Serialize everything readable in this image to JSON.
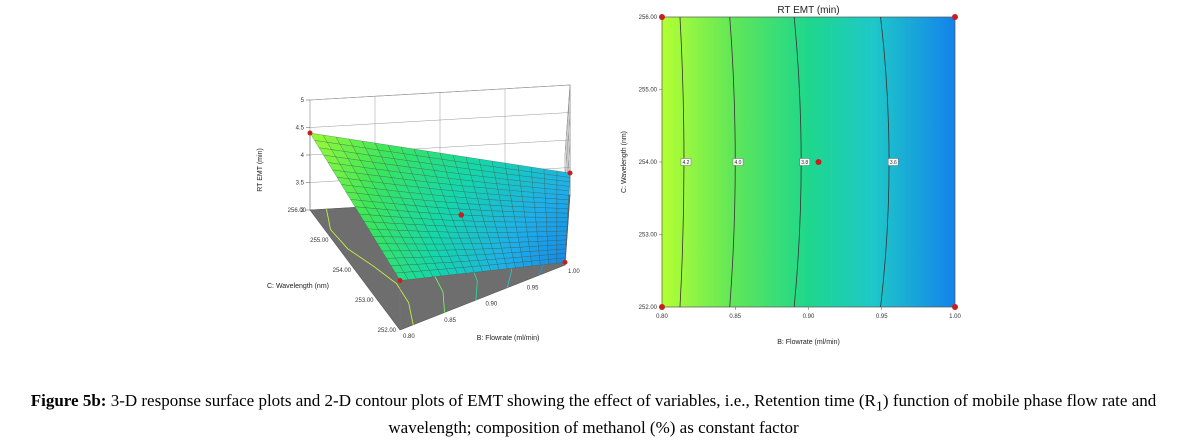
{
  "chart_data": [
    {
      "type": "surface",
      "zlabel": "RT EMT (min)",
      "xlabel": "B: Flowrate (ml/min)",
      "ylabel": "C: Wavelength (nm)",
      "z_ticks": [
        "3",
        "3.5",
        "4",
        "4.5",
        "5"
      ],
      "x_ticks": [
        "0.80",
        "0.85",
        "0.90",
        "0.95",
        "1.00"
      ],
      "y_ticks": [
        "252.00",
        "253.00",
        "254.00",
        "255.00",
        "256.00"
      ],
      "zlim": [
        3,
        5
      ],
      "xlim": [
        0.8,
        1.0
      ],
      "ylim": [
        252,
        256
      ],
      "corner_points": [
        {
          "flow": 0.8,
          "wavelength": 256,
          "rt": 4.4
        },
        {
          "flow": 1.0,
          "wavelength": 256,
          "rt": 3.4
        },
        {
          "flow": 0.8,
          "wavelength": 252,
          "rt": 3.9
        },
        {
          "flow": 1.0,
          "wavelength": 252,
          "rt": 3.05
        }
      ],
      "center_point": {
        "flow": 0.9,
        "wavelength": 254,
        "rt": 3.7
      }
    },
    {
      "type": "contour",
      "title": "RT EMT (min)",
      "xlabel": "B: Flowrate (ml/min)",
      "ylabel": "C: Wavelength (nm)",
      "x_ticks": [
        "0.80",
        "0.85",
        "0.90",
        "0.95",
        "1.00"
      ],
      "y_ticks": [
        "252.00",
        "253.00",
        "254.00",
        "255.00",
        "256.00"
      ],
      "xlim": [
        0.8,
        1.0
      ],
      "ylim": [
        252,
        256
      ],
      "contour_lines_flow": [
        0.815,
        0.85,
        0.895,
        0.955
      ],
      "contour_labels": [
        "4.2",
        "4.0",
        "3.8",
        "3.6"
      ],
      "design_points": [
        {
          "flow": 0.8,
          "wavelength": 256
        },
        {
          "flow": 1.0,
          "wavelength": 256
        },
        {
          "flow": 0.8,
          "wavelength": 252
        },
        {
          "flow": 1.0,
          "wavelength": 252
        },
        {
          "flow": 0.9,
          "wavelength": 254
        }
      ]
    }
  ],
  "caption": {
    "label": "Figure 5b:",
    "text_before": " 3-D response surface plots and 2-D contour plots of EMT showing the effect of variables, i.e., Retention time (R",
    "subscript": "1",
    "text_after": ") function of mobile phase flow rate and wavelength; composition of methanol (%) as constant factor"
  }
}
